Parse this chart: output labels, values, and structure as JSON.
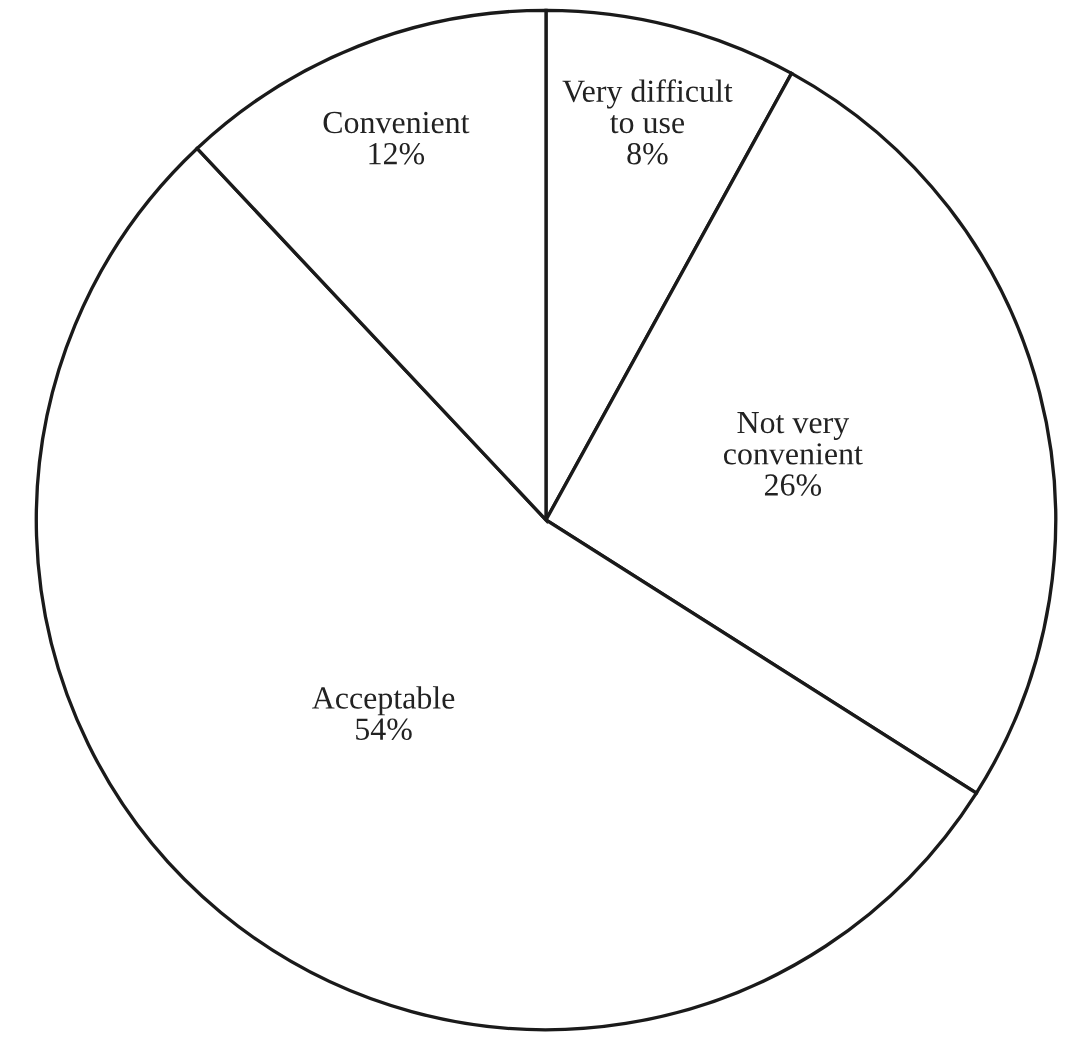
{
  "chart_data": {
    "type": "pie",
    "categories": [
      "Very difficult to use",
      "Not very convenient",
      "Acceptable",
      "Convenient"
    ],
    "values": [
      8,
      26,
      54,
      12
    ],
    "value_labels": [
      "8%",
      "26%",
      "54%",
      "12%"
    ],
    "colors": [
      "#ffffff",
      "#ffffff",
      "#ffffff",
      "#ffffff"
    ],
    "legend": false
  }
}
